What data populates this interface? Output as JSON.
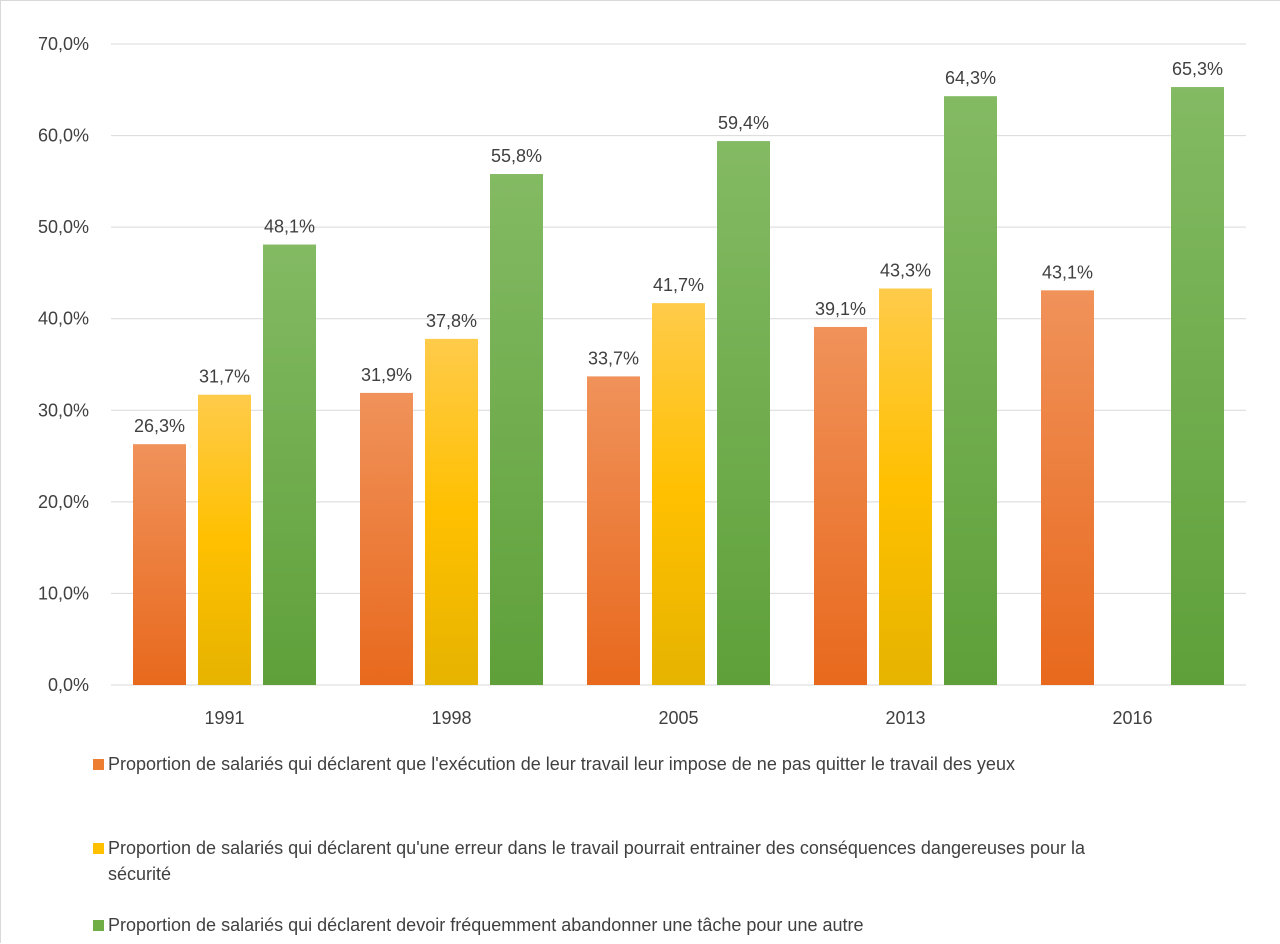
{
  "chart_data": {
    "type": "bar",
    "title": "",
    "xlabel": "",
    "ylabel": "",
    "ylim": [
      0,
      70
    ],
    "yticks": [
      "0,0%",
      "10,0%",
      "20,0%",
      "30,0%",
      "40,0%",
      "50,0%",
      "60,0%",
      "70,0%"
    ],
    "grid": true,
    "legend_position": "bottom",
    "categories": [
      "1991",
      "1998",
      "2005",
      "2013",
      "2016"
    ],
    "series": [
      {
        "name": "Proportion de salariés qui déclarent que l'exécution de leur travail leur impose de ne pas quitter le travail des yeux",
        "color": "#ed7d31",
        "values": [
          26.3,
          31.9,
          33.7,
          39.1,
          43.1
        ],
        "labels": [
          "26,3%",
          "31,9%",
          "33,7%",
          "39,1%",
          "43,1%"
        ]
      },
      {
        "name": "Proportion de salariés qui déclarent qu'une erreur dans le travail pourrait entrainer des conséquences dangereuses pour la sécurité",
        "color": "#ffc000",
        "values": [
          31.7,
          37.8,
          41.7,
          43.3,
          null
        ],
        "labels": [
          "31,7%",
          "37,8%",
          "41,7%",
          "43,3%",
          ""
        ]
      },
      {
        "name": "Proportion de salariés qui déclarent devoir fréquemment abandonner une tâche pour une autre",
        "color": "#70ad47",
        "values": [
          48.1,
          55.8,
          59.4,
          64.3,
          65.3
        ],
        "labels": [
          "48,1%",
          "55,8%",
          "59,4%",
          "64,3%",
          "65,3%"
        ]
      }
    ]
  }
}
